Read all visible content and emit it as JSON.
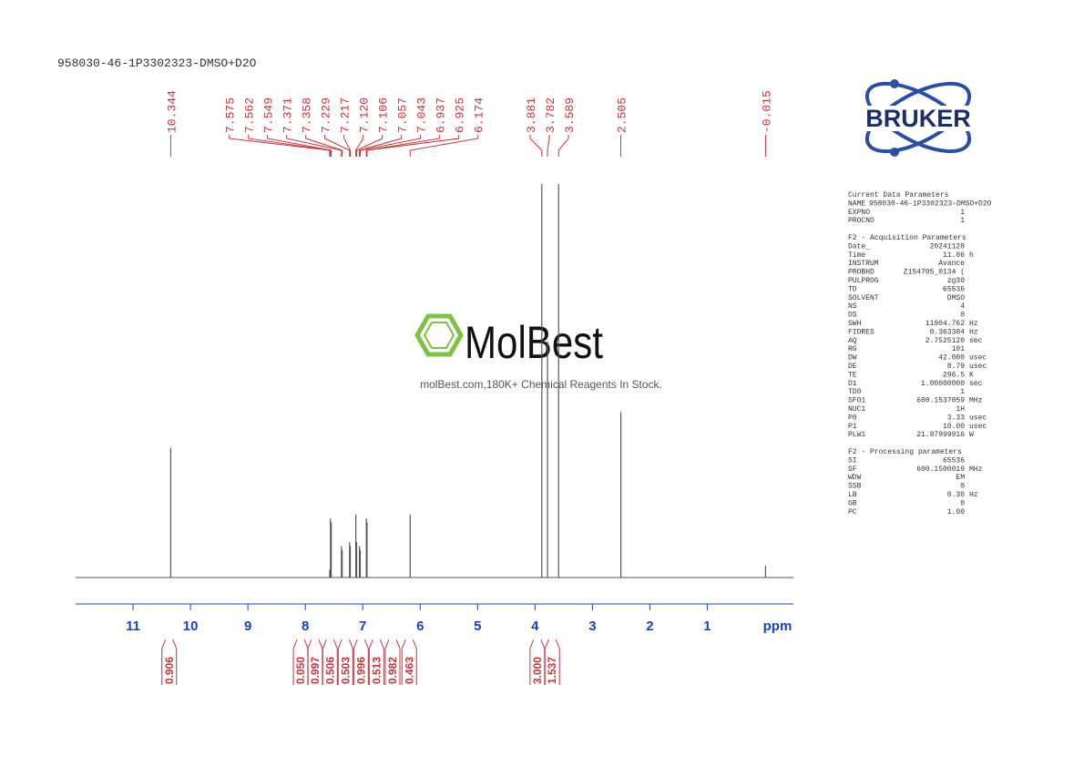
{
  "chart_data": {
    "type": "line",
    "title": "958030-46-1P3302323-DMSO+D2O",
    "x_label": "ppm",
    "xlim": [
      12,
      -0.5
    ],
    "xticks": [
      11,
      10,
      9,
      8,
      7,
      6,
      5,
      4,
      3,
      2,
      1
    ],
    "ylim": [
      0,
      100
    ],
    "color": "#555555",
    "x": [
      10.344,
      7.575,
      7.562,
      7.549,
      7.371,
      7.358,
      7.229,
      7.217,
      7.12,
      7.106,
      7.057,
      7.043,
      6.937,
      6.925,
      6.174,
      3.881,
      3.782,
      3.589,
      2.505,
      -0.015
    ],
    "x_labels": [
      "10.344",
      "7.575",
      "7.562",
      "7.549",
      "7.371",
      "7.358",
      "7.229",
      "7.217",
      "7.120",
      "7.106",
      "7.057",
      "7.043",
      "6.937",
      "6.925",
      "6.174",
      "3.881",
      "3.782",
      "3.589",
      "2.505",
      "-0.015"
    ],
    "values": [
      33,
      2,
      15,
      14,
      8,
      7,
      9,
      8,
      16,
      9,
      8,
      7,
      15,
      14,
      16,
      140,
      60,
      140,
      42,
      3
    ],
    "integrals": {
      "x": [
        10.37,
        8.08,
        7.83,
        7.57,
        7.3,
        7.03,
        6.76,
        6.48,
        6.19,
        3.96,
        3.7
      ],
      "labels": [
        "0.906",
        "0.050",
        "0.997",
        "0.506",
        "0.503",
        "0.996",
        "0.513",
        "0.982",
        "0.463",
        "3.000",
        "1.537"
      ]
    }
  },
  "logo": "BRUKER",
  "watermark": {
    "name": "MolBest",
    "tagline": "molBest.com,180K+ Chemical Reagents In Stock."
  },
  "parameters": [
    {
      "title": "Current Data Parameters",
      "rows": [
        [
          "NAME",
          "958030-46-1P3302323-DMSO+D2O"
        ],
        [
          "EXPNO",
          "1"
        ],
        [
          "PROCNO",
          "1"
        ]
      ]
    },
    {
      "title": "F2 - Acquisition Parameters",
      "rows": [
        [
          "Date_",
          "20241128"
        ],
        [
          "Time",
          "11.06",
          "h"
        ],
        [
          "INSTRUM",
          "Avance"
        ],
        [
          "PROBHD",
          "Z154705_0134 ("
        ],
        [
          "PULPROG",
          "zg30"
        ],
        [
          "TD",
          "65536"
        ],
        [
          "SOLVENT",
          "DMSO"
        ],
        [
          "NS",
          "4"
        ],
        [
          "DS",
          "0"
        ],
        [
          "SWH",
          "11904.762",
          "Hz"
        ],
        [
          "FIDRES",
          "0.363304",
          "Hz"
        ],
        [
          "AQ",
          "2.7525120",
          "sec"
        ],
        [
          "RG",
          "101"
        ],
        [
          "DW",
          "42.000",
          "usec"
        ],
        [
          "DE",
          "8.79",
          "usec"
        ],
        [
          "TE",
          "296.5",
          "K"
        ],
        [
          "D1",
          "1.00000000",
          "sec"
        ],
        [
          "TD0",
          "1"
        ],
        [
          "SFO1",
          "600.1537059",
          "MHz"
        ],
        [
          "NUC1",
          "1H"
        ],
        [
          "P0",
          "3.33",
          "usec"
        ],
        [
          "P1",
          "10.00",
          "usec"
        ],
        [
          "PLW1",
          "21.87999916",
          "W"
        ]
      ]
    },
    {
      "title": "F2 - Processing parameters",
      "rows": [
        [
          "SI",
          "65536"
        ],
        [
          "SF",
          "600.1500019",
          "MHz"
        ],
        [
          "WDW",
          "EM"
        ],
        [
          "SSB",
          "0"
        ],
        [
          "LB",
          "0.30",
          "Hz"
        ],
        [
          "GB",
          "0"
        ],
        [
          "PC",
          "1.00"
        ]
      ]
    }
  ]
}
